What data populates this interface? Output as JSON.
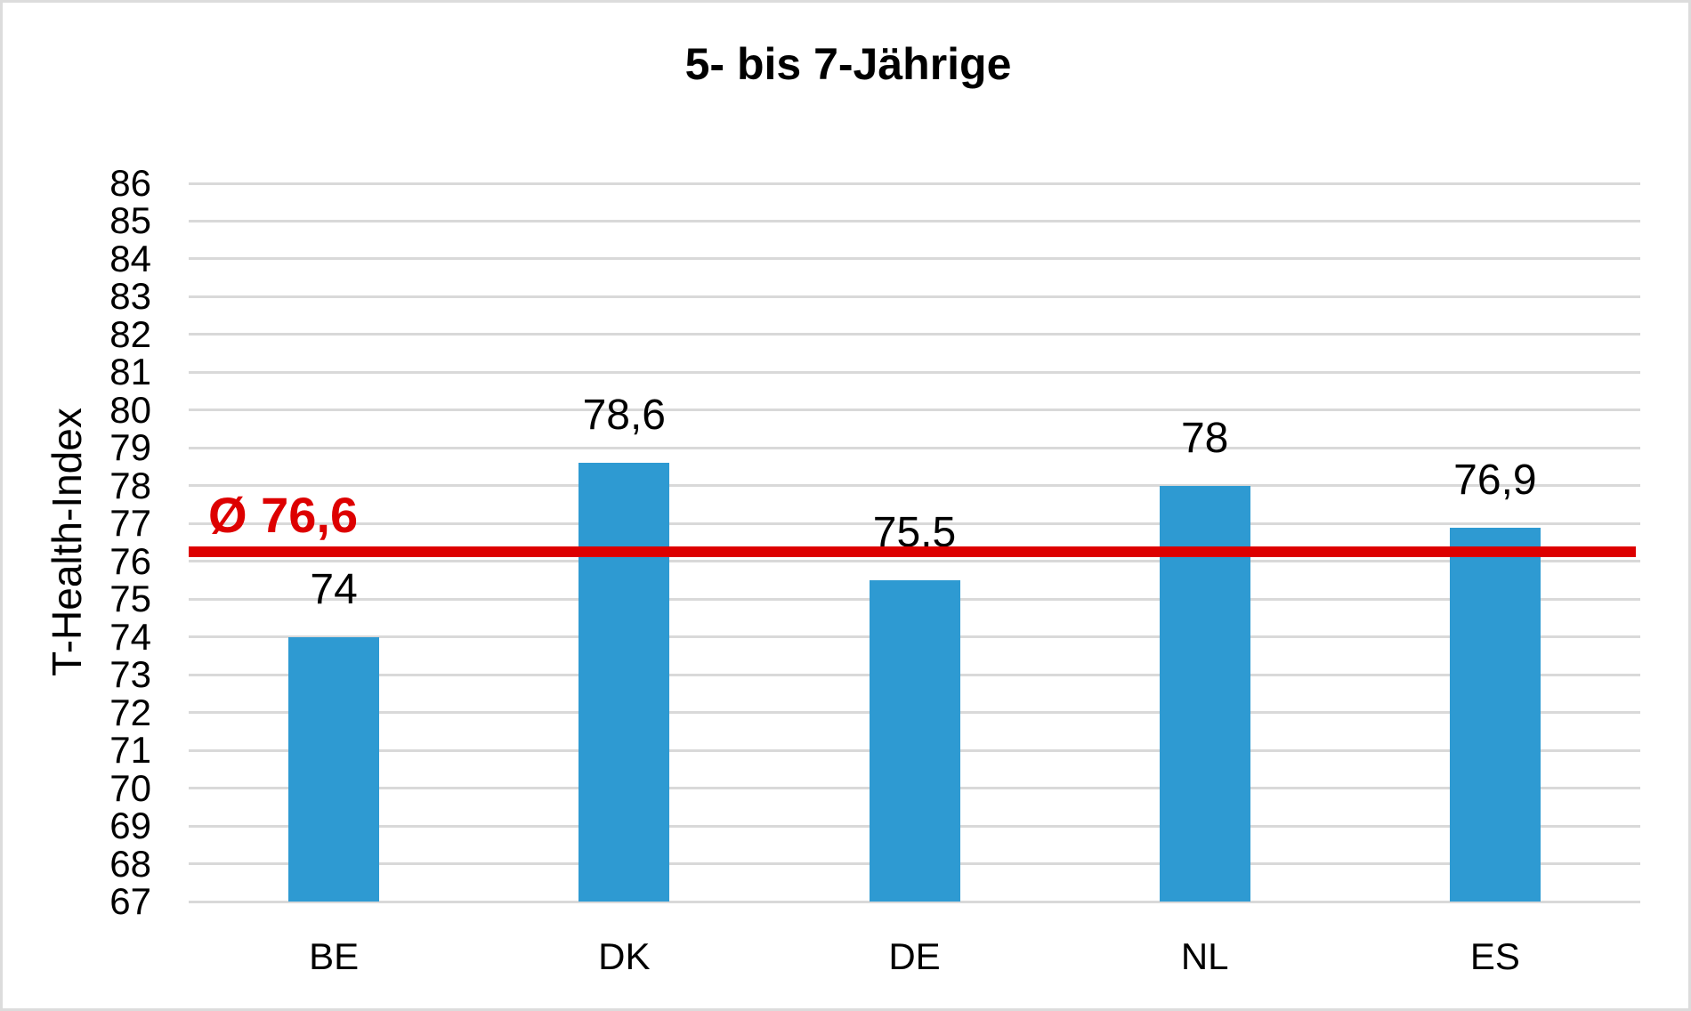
{
  "frame": {
    "border_color": "#dcdcdc",
    "background_color": "#ffffff"
  },
  "chart_data": {
    "type": "bar",
    "title": "5- bis 7-Jährige",
    "xlabel": "",
    "ylabel": "T-Health-Index",
    "categories": [
      "BE",
      "DK",
      "DE",
      "NL",
      "ES"
    ],
    "values": [
      74,
      78.6,
      75.5,
      78,
      76.9
    ],
    "value_labels": [
      "74",
      "78,6",
      "75,5",
      "78",
      "76,9"
    ],
    "ylim": [
      67,
      86
    ],
    "ytick_step": 1,
    "grid": true,
    "legend": "none",
    "bar_color": "#2e9ad2",
    "gridline_color": "#d9d9d9",
    "text_color": "#000000",
    "average_line": {
      "label": "Ø 76,6",
      "value": 76.6,
      "color": "#dd0000",
      "position_value": 76.25
    }
  }
}
